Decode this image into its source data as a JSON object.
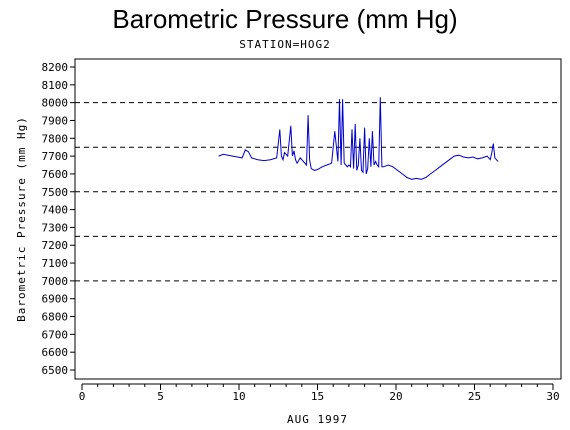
{
  "chart_data": {
    "type": "line",
    "title": "Barometric Pressure (mm Hg)",
    "subtitle": "STATION=HOG2",
    "xlabel": "AUG 1997",
    "ylabel": "Barometric Pressure (mm Hg)",
    "xlim": [
      0,
      30
    ],
    "ylim": [
      6500,
      8200
    ],
    "x_ticks": [
      0,
      5,
      10,
      15,
      20,
      25,
      30
    ],
    "y_ticks": [
      6500,
      6600,
      6700,
      6800,
      6900,
      7000,
      7100,
      7200,
      7300,
      7400,
      7500,
      7600,
      7700,
      7800,
      7900,
      8000,
      8100,
      8200
    ],
    "reference_lines": [
      7000,
      7250,
      7500,
      7750,
      8000
    ],
    "line_color": "#0000cc",
    "series": [
      {
        "x": [
          8.7,
          9.0,
          9.3,
          9.6,
          9.9,
          10.2,
          10.4,
          10.6,
          10.8,
          11.2,
          11.6,
          12.0,
          12.4,
          12.6,
          12.7,
          12.8,
          12.9,
          13.1,
          13.3,
          13.4,
          13.5,
          13.6,
          13.7,
          13.9,
          14.1,
          14.3,
          14.4,
          14.5,
          14.6,
          14.8,
          15.0,
          15.3,
          15.6,
          15.9,
          16.1,
          16.3,
          16.4,
          16.5,
          16.6,
          16.7,
          16.8,
          16.9,
          17.0,
          17.1,
          17.2,
          17.3,
          17.4,
          17.5,
          17.6,
          17.7,
          17.8,
          17.9,
          18.0,
          18.1,
          18.2,
          18.3,
          18.4,
          18.5,
          18.6,
          18.7,
          18.8,
          18.9,
          19.0,
          19.1,
          19.2,
          19.5,
          19.8,
          20.1,
          20.4,
          20.7,
          21.0,
          21.3,
          21.6,
          21.9,
          22.2,
          22.5,
          22.8,
          23.1,
          23.4,
          23.7,
          24.0,
          24.3,
          24.6,
          24.9,
          25.2,
          25.5,
          25.8,
          26.0,
          26.1,
          26.2,
          26.3,
          26.4,
          26.5
        ],
        "y": [
          7700,
          7710,
          7705,
          7700,
          7695,
          7690,
          7735,
          7725,
          7690,
          7680,
          7675,
          7680,
          7690,
          7850,
          7700,
          7680,
          7720,
          7700,
          7870,
          7700,
          7730,
          7680,
          7660,
          7690,
          7670,
          7650,
          7930,
          7680,
          7630,
          7620,
          7625,
          7640,
          7650,
          7660,
          7840,
          7670,
          8020,
          7650,
          8020,
          7660,
          7650,
          7640,
          7650,
          7640,
          7850,
          7630,
          7880,
          7620,
          7650,
          7800,
          7620,
          7610,
          7860,
          7600,
          7630,
          7800,
          7640,
          7840,
          7650,
          7670,
          7650,
          7640,
          8030,
          7640,
          7640,
          7650,
          7640,
          7620,
          7600,
          7580,
          7570,
          7575,
          7570,
          7580,
          7600,
          7620,
          7640,
          7660,
          7680,
          7700,
          7705,
          7695,
          7690,
          7695,
          7685,
          7690,
          7700,
          7680,
          7720,
          7770,
          7690,
          7680,
          7670
        ]
      }
    ]
  }
}
